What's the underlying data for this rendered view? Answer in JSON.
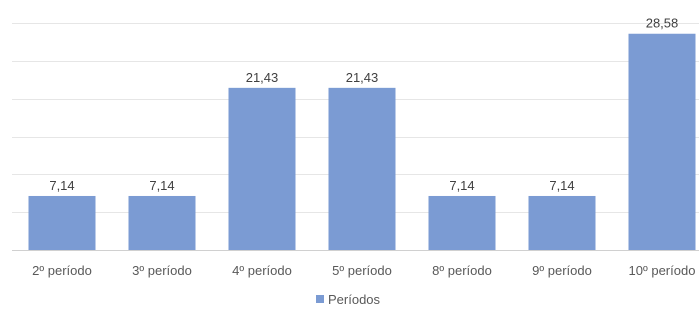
{
  "chart_data": {
    "type": "bar",
    "categories": [
      "2º período",
      "3º período",
      "4º período",
      "5º período",
      "8º período",
      "9º período",
      "10º período"
    ],
    "series": [
      {
        "name": "Períodos",
        "values": [
          7.14,
          7.14,
          21.43,
          21.43,
          7.14,
          7.14,
          28.58
        ],
        "color": "#7b9bd3"
      }
    ],
    "data_labels": [
      "7,14",
      "7,14",
      "21,43",
      "21,43",
      "7,14",
      "7,14",
      "28,58"
    ],
    "ylim": [
      0,
      30
    ],
    "grid": true,
    "legend_position": "bottom"
  }
}
